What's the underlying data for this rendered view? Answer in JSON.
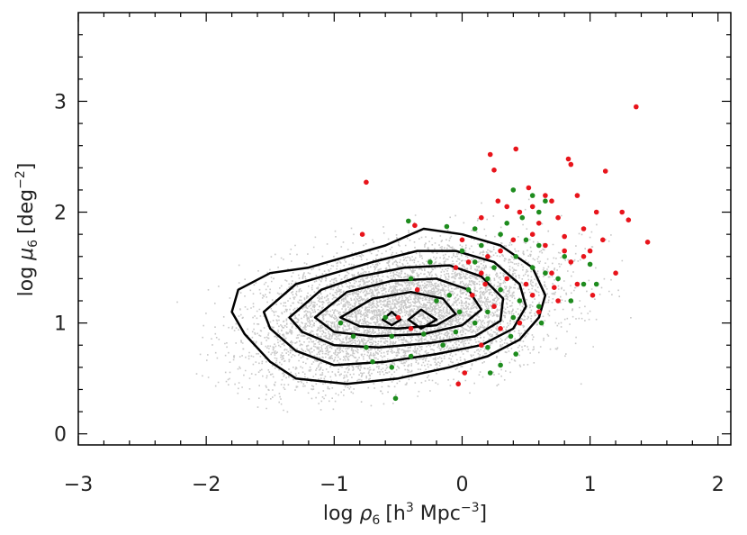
{
  "chart_data": {
    "type": "scatter",
    "title": "",
    "xlabel": {
      "prefix": "log ",
      "symbol": "ρ",
      "sub": "6",
      "unit": "[h",
      "sup1": "3",
      "mid": " Mpc",
      "sup2": "−3",
      "close": "]"
    },
    "ylabel": {
      "prefix": "log ",
      "symbol": "μ",
      "sub": "6",
      "unit": "[deg",
      "sup": "−2",
      "close": "]"
    },
    "xlim": [
      -3,
      2.1
    ],
    "ylim": [
      -0.1,
      3.8
    ],
    "xticks": [
      -3,
      -2,
      -1,
      0,
      1,
      2
    ],
    "xtick_labels": [
      "−3",
      "−2",
      "−1",
      "0",
      "1",
      "2"
    ],
    "yticks": [
      0,
      1,
      2,
      3
    ],
    "ytick_labels": [
      "0",
      "1",
      "2",
      "3"
    ],
    "grid": false,
    "background_cloud": {
      "color": "#c8c8c8",
      "center": [
        -0.45,
        1.1
      ],
      "spread": [
        0.6,
        0.3
      ],
      "extent_x": [
        -2.5,
        1.8
      ],
      "extent_y": [
        0.2,
        3.3
      ]
    },
    "contours": {
      "color": "#000000",
      "levels": [
        [
          [
            -1.75,
            1.3
          ],
          [
            -1.5,
            1.45
          ],
          [
            -1.2,
            1.5
          ],
          [
            -0.9,
            1.6
          ],
          [
            -0.6,
            1.7
          ],
          [
            -0.3,
            1.85
          ],
          [
            0.0,
            1.8
          ],
          [
            0.3,
            1.7
          ],
          [
            0.55,
            1.5
          ],
          [
            0.65,
            1.25
          ],
          [
            0.6,
            1.05
          ],
          [
            0.45,
            0.85
          ],
          [
            0.2,
            0.7
          ],
          [
            -0.1,
            0.6
          ],
          [
            -0.5,
            0.5
          ],
          [
            -0.9,
            0.45
          ],
          [
            -1.3,
            0.5
          ],
          [
            -1.5,
            0.65
          ],
          [
            -1.7,
            0.9
          ],
          [
            -1.8,
            1.1
          ]
        ],
        [
          [
            -1.55,
            1.1
          ],
          [
            -1.3,
            1.35
          ],
          [
            -1.0,
            1.45
          ],
          [
            -0.7,
            1.55
          ],
          [
            -0.35,
            1.65
          ],
          [
            -0.05,
            1.65
          ],
          [
            0.25,
            1.55
          ],
          [
            0.45,
            1.35
          ],
          [
            0.5,
            1.15
          ],
          [
            0.4,
            0.95
          ],
          [
            0.15,
            0.8
          ],
          [
            -0.2,
            0.72
          ],
          [
            -0.6,
            0.65
          ],
          [
            -1.0,
            0.62
          ],
          [
            -1.3,
            0.75
          ],
          [
            -1.5,
            0.95
          ]
        ],
        [
          [
            -1.35,
            1.05
          ],
          [
            -1.1,
            1.3
          ],
          [
            -0.8,
            1.42
          ],
          [
            -0.45,
            1.5
          ],
          [
            -0.1,
            1.52
          ],
          [
            0.15,
            1.42
          ],
          [
            0.32,
            1.22
          ],
          [
            0.3,
            1.02
          ],
          [
            0.1,
            0.88
          ],
          [
            -0.25,
            0.82
          ],
          [
            -0.65,
            0.78
          ],
          [
            -1.0,
            0.8
          ],
          [
            -1.25,
            0.92
          ]
        ],
        [
          [
            -1.15,
            1.05
          ],
          [
            -0.9,
            1.28
          ],
          [
            -0.55,
            1.38
          ],
          [
            -0.2,
            1.4
          ],
          [
            0.05,
            1.3
          ],
          [
            0.15,
            1.12
          ],
          [
            0.0,
            0.98
          ],
          [
            -0.3,
            0.9
          ],
          [
            -0.7,
            0.88
          ],
          [
            -1.0,
            0.92
          ]
        ],
        [
          [
            -0.95,
            1.05
          ],
          [
            -0.7,
            1.22
          ],
          [
            -0.4,
            1.28
          ],
          [
            -0.15,
            1.22
          ],
          [
            -0.05,
            1.08
          ],
          [
            -0.2,
            0.98
          ],
          [
            -0.5,
            0.95
          ],
          [
            -0.8,
            0.97
          ]
        ],
        [
          [
            -0.62,
            1.03
          ],
          [
            -0.55,
            1.1
          ],
          [
            -0.48,
            1.03
          ],
          [
            -0.55,
            0.98
          ]
        ],
        [
          [
            -0.42,
            1.03
          ],
          [
            -0.32,
            1.12
          ],
          [
            -0.2,
            1.03
          ],
          [
            -0.32,
            0.95
          ]
        ]
      ]
    },
    "series": [
      {
        "color": "#e8141b",
        "points": [
          [
            1.36,
            2.95
          ],
          [
            0.42,
            2.57
          ],
          [
            0.22,
            2.52
          ],
          [
            0.25,
            2.38
          ],
          [
            0.83,
            2.48
          ],
          [
            0.85,
            2.43
          ],
          [
            1.12,
            2.37
          ],
          [
            -0.75,
            2.27
          ],
          [
            0.52,
            2.22
          ],
          [
            0.7,
            2.1
          ],
          [
            0.9,
            2.15
          ],
          [
            1.05,
            2.0
          ],
          [
            1.25,
            2.0
          ],
          [
            1.3,
            1.93
          ],
          [
            1.45,
            1.73
          ],
          [
            0.28,
            2.1
          ],
          [
            0.45,
            2.0
          ],
          [
            0.6,
            1.9
          ],
          [
            0.75,
            1.95
          ],
          [
            0.95,
            1.85
          ],
          [
            1.1,
            1.75
          ],
          [
            0.55,
            1.8
          ],
          [
            0.65,
            1.7
          ],
          [
            0.8,
            1.65
          ],
          [
            0.4,
            1.75
          ],
          [
            0.3,
            1.65
          ],
          [
            0.2,
            1.6
          ],
          [
            0.0,
            1.75
          ],
          [
            -0.05,
            1.5
          ],
          [
            0.05,
            1.55
          ],
          [
            0.15,
            1.45
          ],
          [
            0.35,
            1.4
          ],
          [
            0.5,
            1.35
          ],
          [
            0.7,
            1.45
          ],
          [
            0.85,
            1.55
          ],
          [
            0.9,
            1.35
          ],
          [
            1.02,
            1.25
          ],
          [
            1.2,
            1.45
          ],
          [
            0.75,
            1.2
          ],
          [
            0.6,
            1.1
          ],
          [
            0.45,
            1.0
          ],
          [
            0.3,
            0.95
          ],
          [
            0.15,
            0.8
          ],
          [
            0.02,
            0.55
          ],
          [
            -0.03,
            0.45
          ],
          [
            -0.35,
            1.3
          ],
          [
            -0.5,
            1.05
          ],
          [
            -0.4,
            0.95
          ],
          [
            -0.78,
            1.8
          ],
          [
            -0.37,
            1.88
          ],
          [
            0.08,
            1.25
          ],
          [
            0.25,
            1.15
          ],
          [
            0.55,
            1.25
          ],
          [
            0.72,
            1.32
          ],
          [
            0.95,
            1.6
          ],
          [
            0.15,
            1.95
          ],
          [
            0.35,
            2.05
          ],
          [
            0.55,
            2.05
          ],
          [
            0.65,
            2.15
          ],
          [
            1.0,
            1.65
          ],
          [
            0.8,
            1.78
          ],
          [
            0.18,
            1.35
          ]
        ]
      },
      {
        "color": "#1e8c1e",
        "points": [
          [
            0.4,
            2.2
          ],
          [
            0.55,
            2.15
          ],
          [
            0.65,
            2.1
          ],
          [
            0.47,
            1.95
          ],
          [
            0.35,
            1.9
          ],
          [
            0.1,
            1.85
          ],
          [
            -0.12,
            1.87
          ],
          [
            -0.42,
            1.92
          ],
          [
            0.3,
            1.8
          ],
          [
            0.5,
            1.75
          ],
          [
            0.6,
            1.7
          ],
          [
            0.15,
            1.7
          ],
          [
            0.0,
            1.65
          ],
          [
            -0.25,
            1.55
          ],
          [
            0.25,
            1.5
          ],
          [
            0.42,
            1.6
          ],
          [
            0.55,
            1.5
          ],
          [
            0.65,
            1.45
          ],
          [
            0.8,
            1.6
          ],
          [
            0.75,
            1.4
          ],
          [
            1.0,
            1.53
          ],
          [
            1.05,
            1.35
          ],
          [
            0.95,
            1.35
          ],
          [
            0.2,
            1.4
          ],
          [
            0.05,
            1.3
          ],
          [
            -0.1,
            1.25
          ],
          [
            -0.2,
            1.2
          ],
          [
            0.3,
            1.3
          ],
          [
            0.45,
            1.2
          ],
          [
            0.6,
            1.15
          ],
          [
            0.62,
            1.0
          ],
          [
            0.2,
            1.1
          ],
          [
            0.1,
            1.0
          ],
          [
            -0.05,
            0.92
          ],
          [
            -0.3,
            0.9
          ],
          [
            -0.55,
            0.88
          ],
          [
            -0.75,
            0.78
          ],
          [
            -0.85,
            0.88
          ],
          [
            -0.55,
            0.6
          ],
          [
            -0.7,
            0.65
          ],
          [
            -0.4,
            0.7
          ],
          [
            -0.15,
            0.8
          ],
          [
            0.2,
            0.78
          ],
          [
            0.3,
            0.62
          ],
          [
            0.42,
            0.72
          ],
          [
            0.22,
            0.55
          ],
          [
            -0.52,
            0.32
          ],
          [
            -0.6,
            1.05
          ],
          [
            -0.95,
            1.0
          ],
          [
            -0.4,
            1.4
          ],
          [
            0.1,
            1.55
          ],
          [
            0.6,
            2.0
          ],
          [
            0.85,
            1.2
          ],
          [
            0.4,
            1.05
          ],
          [
            0.38,
            0.88
          ],
          [
            -0.02,
            1.1
          ]
        ]
      }
    ]
  }
}
